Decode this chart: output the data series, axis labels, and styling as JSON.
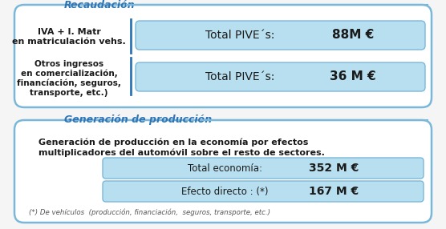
{
  "bg_color": "#f5f5f5",
  "section1_title": "Recaudación",
  "section1_title_color": "#2e75b6",
  "section1_border_color": "#7ab8d9",
  "section1_bg": "#ffffff",
  "row1_left": "IVA + I. Matr\nen matriculación vehs.",
  "row1_label": "Total PIVE´s:",
  "row1_value": "88M €",
  "row2_left": "Otros ingresos\nen comercialización,\nfinancíación, seguros,\ntransporte, etc.)",
  "row2_label": "Total PIVE´s:",
  "row2_value": "36 M €",
  "section2_title": "Generación de producción",
  "section2_title_color": "#2e75b6",
  "section2_border_color": "#7ab8d9",
  "section2_bg": "#ffffff",
  "section2_desc_line1": "Generación de producción en la economía por efectos",
  "section2_desc_line2": "multiplicadores del automóvil sobre el resto de sectores.",
  "row3_label": "Total economía:",
  "row3_value": "352 M €",
  "row4_label": "Efecto directo : (*)",
  "row4_value": "167 M €",
  "footnote": "(*) De vehículos  (producción, financiación,  seguros, transporte, etc.)",
  "divider_color": "#2e75b6",
  "highlight_box_color": "#b8dff0",
  "highlight_border_color": "#7ab8d9",
  "text_dark": "#1a1a1a",
  "text_gray": "#555555"
}
